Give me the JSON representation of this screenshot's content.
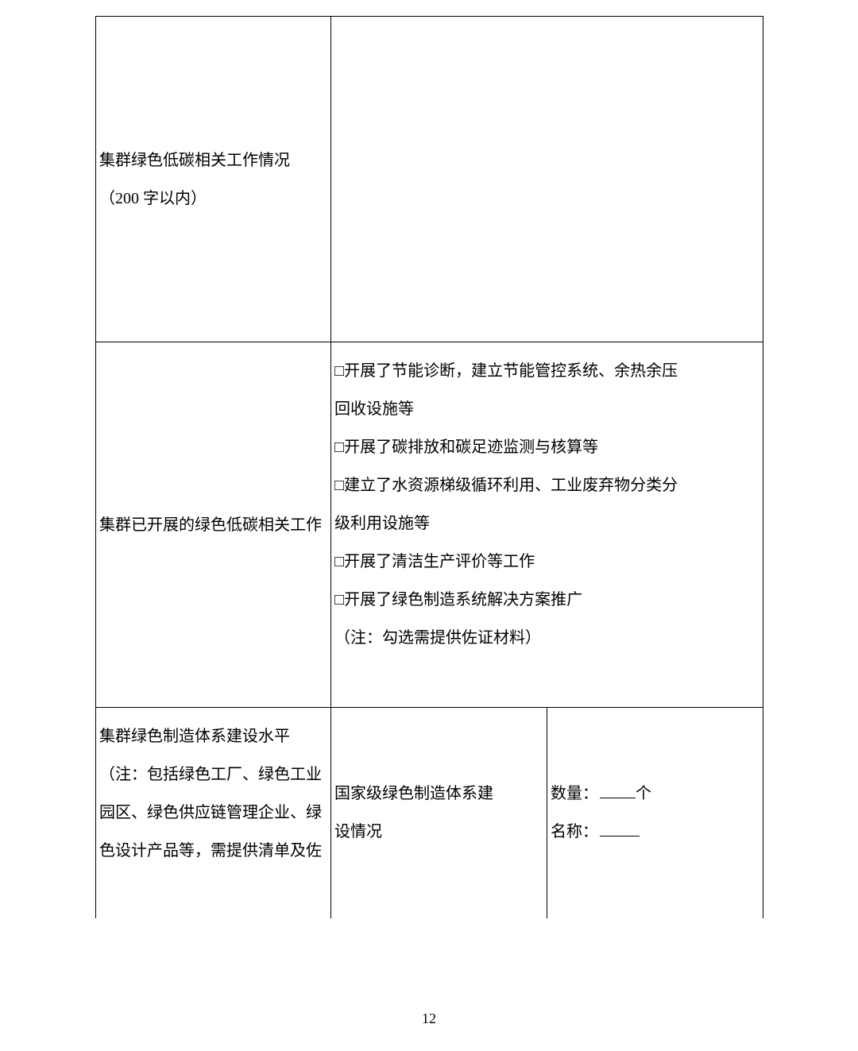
{
  "row1": {
    "label_line1": "集群绿色低碳相关工作情况",
    "label_line2": "（200 字以内）"
  },
  "row2": {
    "label": "集群已开展的绿色低碳相关工作",
    "option1_line1": "□开展了节能诊断，建立节能管控系统、余热余压",
    "option1_line2": "回收设施等",
    "option2": "□开展了碳排放和碳足迹监测与核算等",
    "option3_line1": "□建立了水资源梯级循环利用、工业废弃物分类分",
    "option3_line2": "级利用设施等",
    "option4": "□开展了清洁生产评价等工作",
    "option5": "□开展了绿色制造系统解决方案推广",
    "note": "（注：勾选需提供佐证材料）"
  },
  "row3": {
    "label_line1": "集群绿色制造体系建设水平",
    "label_line2": "（注：包括绿色工厂、绿色工业",
    "label_line3": "园区、绿色供应链管理企业、绿",
    "label_line4": "色设计产品等，需提供清单及佐",
    "col2_line1": "国家级绿色制造体系建",
    "col2_line2": "设情况",
    "col3_qty": "数量：",
    "col3_qty_unit": "个",
    "col3_name": "名称："
  },
  "page_number": "12"
}
